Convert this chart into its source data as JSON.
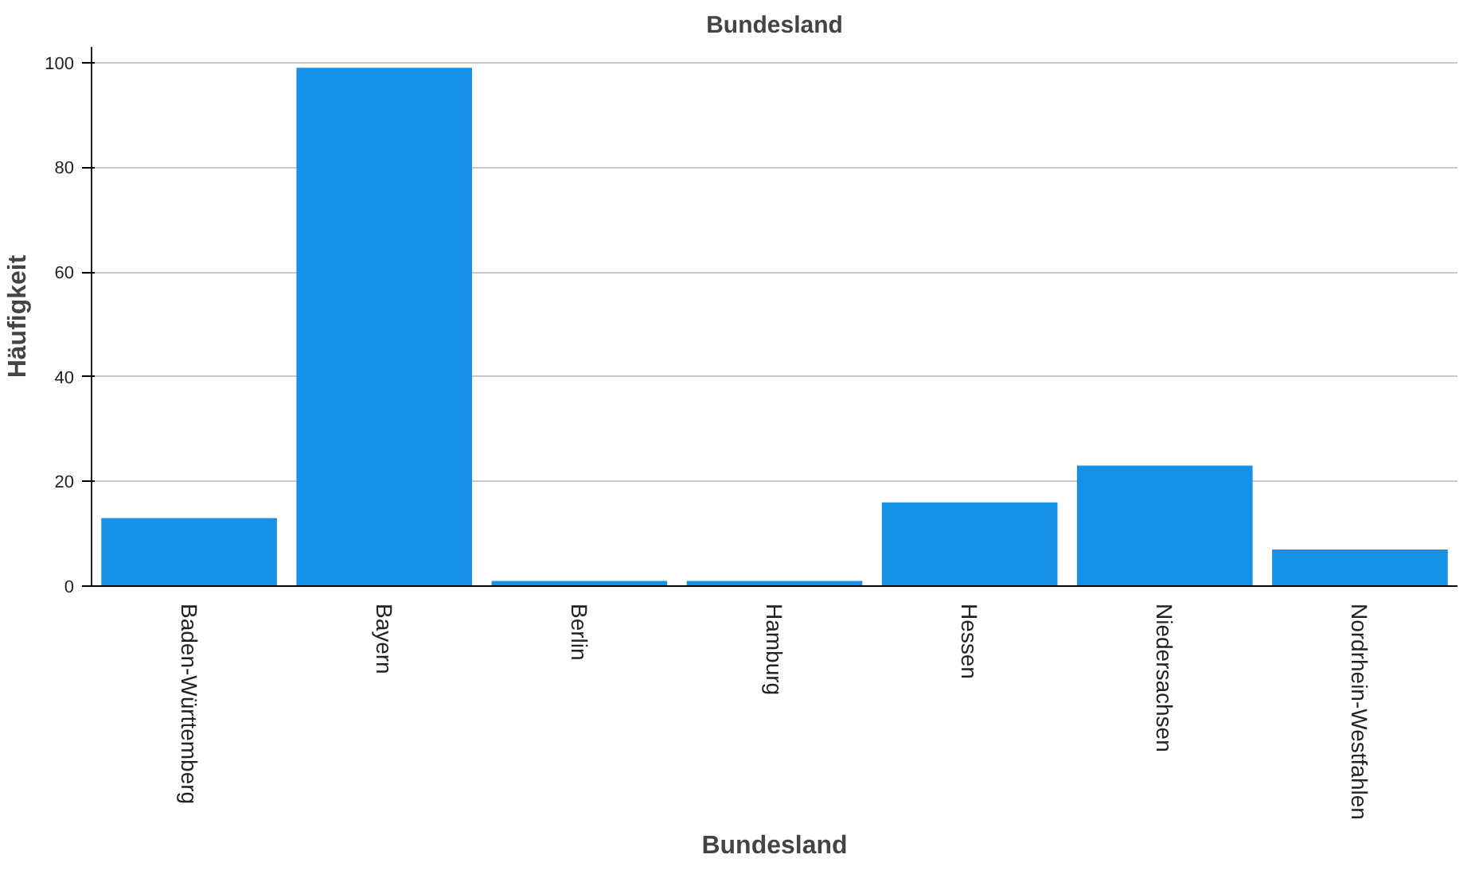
{
  "chart_data": {
    "type": "bar",
    "title": "Bundesland",
    "xlabel": "Bundesland",
    "ylabel": "Häufigkeit",
    "categories": [
      "Baden-Württemberg",
      "Bayern",
      "Berlin",
      "Hamburg",
      "Hessen",
      "Niedersachsen",
      "Nordrhein-Westfahlen"
    ],
    "values": [
      13,
      99,
      1,
      1,
      16,
      23,
      7
    ],
    "color": "#1591e8",
    "ylim": [
      0,
      103
    ],
    "yticks": [
      0,
      20,
      40,
      60,
      80,
      100
    ],
    "grid": "y"
  }
}
